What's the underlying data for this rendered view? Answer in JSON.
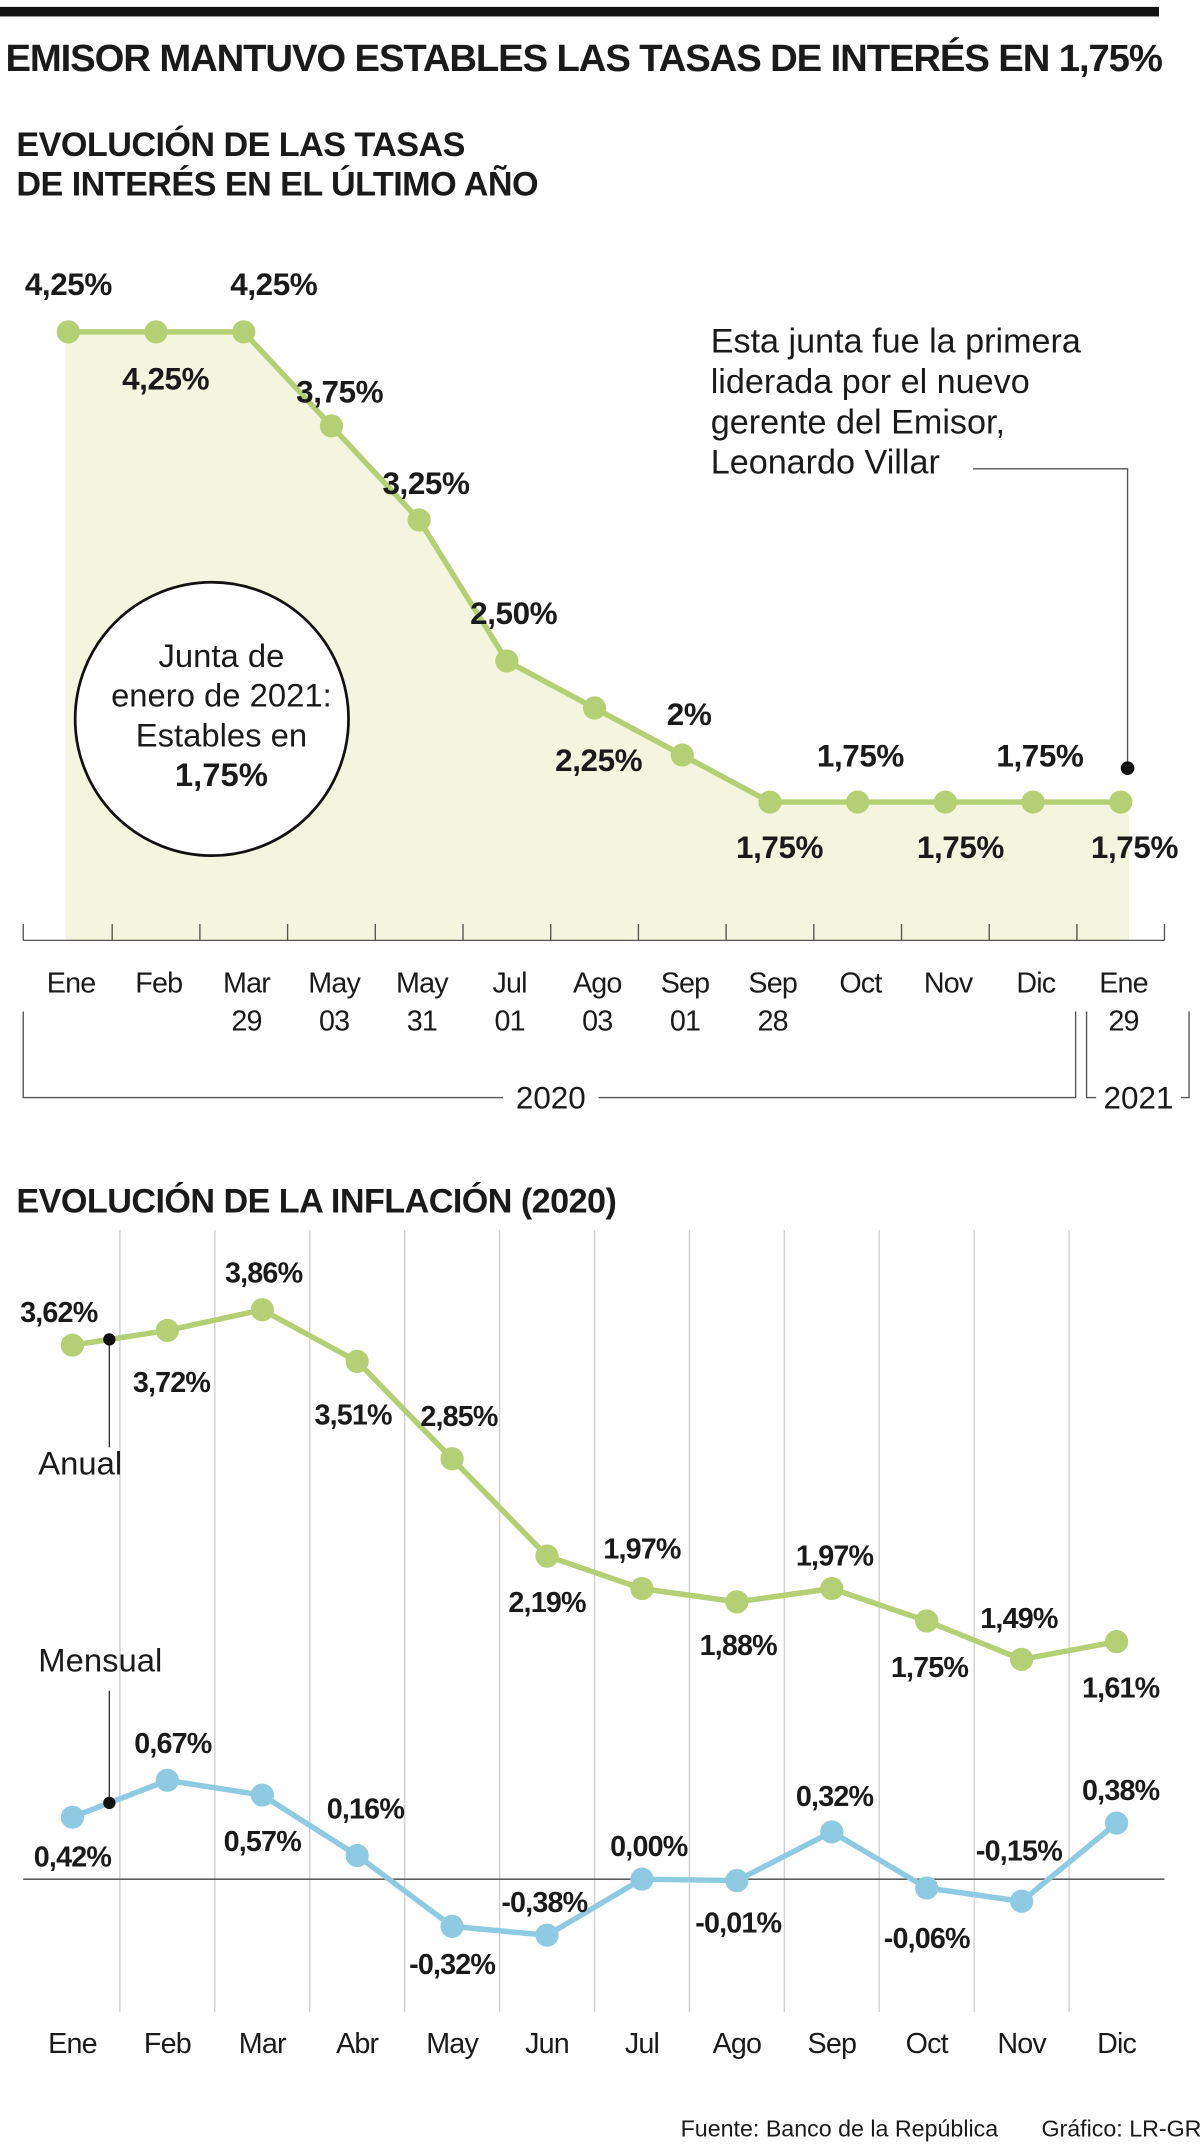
{
  "title": "EMISOR MANTUVO ESTABLES LAS TASAS DE INTERÉS EN 1,75%",
  "chart_data": [
    {
      "type": "line",
      "area": true,
      "title": [
        "EVOLUCIÓN DE LAS TASAS",
        "DE INTERÉS EN EL ÚLTIMO AÑO"
      ],
      "categories": [
        "Ene",
        "Feb",
        "Mar\n29",
        "May\n03",
        "May\n31",
        "Jul\n01",
        "Ago\n03",
        "Sep\n01",
        "Sep\n28",
        "Oct",
        "Nov",
        "Dic",
        "Ene\n29"
      ],
      "values": [
        4.25,
        4.25,
        4.25,
        3.75,
        3.25,
        2.5,
        2.25,
        2,
        1.75,
        1.75,
        1.75,
        1.75,
        1.75
      ],
      "value_labels": [
        "4,25%",
        "4,25%",
        "4,25%",
        "3,75%",
        "3,25%",
        "2,50%",
        "2,25%",
        "2%",
        "1,75%",
        "1,75%",
        "1,75%",
        "1,75%",
        "1,75%"
      ],
      "color": "#b5cf74",
      "area_color": "#f3f5de",
      "ylim": [
        1,
        4.75
      ],
      "groups": [
        "2020",
        "2021"
      ],
      "annotation": [
        "Esta junta fue la primera",
        "liderada por el nuevo",
        "gerente del Emisor,",
        "Leonardo Villar"
      ],
      "circle_note": [
        "Junta de",
        "enero de 2021:",
        "Estables en",
        "1,75%"
      ]
    },
    {
      "type": "line",
      "title": "EVOLUCIÓN DE LA INFLACIÓN (2020)",
      "categories": [
        "Ene",
        "Feb",
        "Mar",
        "Abr",
        "May",
        "Jun",
        "Jul",
        "Ago",
        "Sep",
        "Oct",
        "Nov",
        "Dic"
      ],
      "series": [
        {
          "name": "Anual",
          "color": "#b5cf74",
          "values": [
            3.62,
            3.72,
            3.86,
            3.51,
            2.85,
            2.19,
            1.97,
            1.88,
            1.97,
            1.75,
            1.49,
            1.61
          ],
          "value_labels": [
            "3,62%",
            "3,72%",
            "3,86%",
            "3,51%",
            "2,85%",
            "2,19%",
            "1,97%",
            "1,88%",
            "1,97%",
            "1,75%",
            "1,49%",
            "1,61%"
          ]
        },
        {
          "name": "Mensual",
          "color": "#8ecbe3",
          "values": [
            0.42,
            0.67,
            0.57,
            0.16,
            -0.32,
            -0.38,
            0.0,
            -0.01,
            0.32,
            -0.06,
            -0.15,
            0.38
          ],
          "value_labels": [
            "0,42%",
            "0,67%",
            "0,57%",
            "0,16%",
            "-0,32%",
            "-0,38%",
            "0,00%",
            "-0,01%",
            "0,32%",
            "-0,06%",
            "-0,15%",
            "0,38%"
          ]
        }
      ],
      "ylim": [
        -0.9,
        4.4
      ]
    }
  ],
  "source": "Fuente: Banco de la República",
  "credit": "Gráfico: LR-GR"
}
